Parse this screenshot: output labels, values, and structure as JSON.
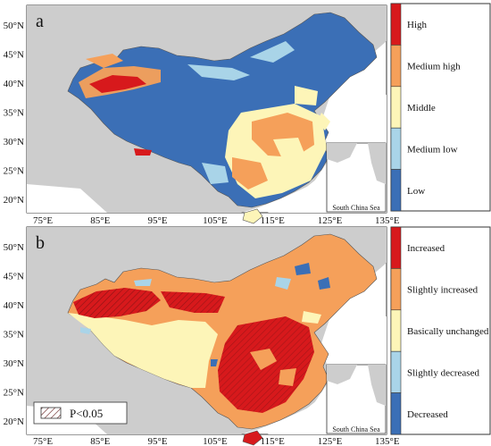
{
  "axes": {
    "lat_labels": [
      "50°N",
      "45°N",
      "40°N",
      "35°N",
      "30°N",
      "25°N",
      "20°N"
    ],
    "lon_labels": [
      "75°E",
      "85°E",
      "95°E",
      "105°E",
      "115°E",
      "125°E",
      "135°E"
    ]
  },
  "panels": [
    {
      "letter": "a",
      "inset_label": "South China Sea",
      "legend": [
        {
          "label": "High",
          "color": "#d7191c"
        },
        {
          "label": "Medium high",
          "color": "#f5a05a"
        },
        {
          "label": "Middle",
          "color": "#fdf5b8"
        },
        {
          "label": "Medium low",
          "color": "#a9d4e8"
        },
        {
          "label": "Low",
          "color": "#3b6fb6"
        }
      ]
    },
    {
      "letter": "b",
      "inset_label": "South China Sea",
      "hatch_label": "P<0.05",
      "legend": [
        {
          "label": "Increased",
          "color": "#d7191c"
        },
        {
          "label": "Slightly increased",
          "color": "#f5a05a"
        },
        {
          "label": "Basically unchanged",
          "color": "#fdf5b8"
        },
        {
          "label": "Slightly decreased",
          "color": "#a9d4e8"
        },
        {
          "label": "Decreased",
          "color": "#3b6fb6"
        }
      ]
    }
  ],
  "colors": {
    "background_land": "#cdcdcd",
    "sea": "#ffffff",
    "border": "#555555"
  }
}
